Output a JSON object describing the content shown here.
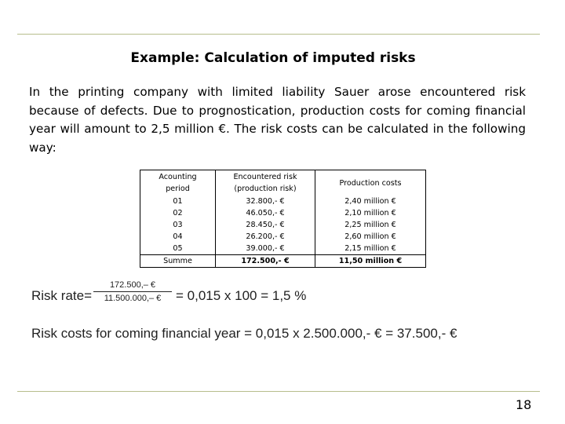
{
  "title": "Example: Calculation of imputed risks",
  "intro": "In the printing company with limited liability Sauer arose encountered risk because of defects. Due to prognostication, production costs for coming financial year will amount to 2,5  million €. The risk costs can be calculated in the following way:",
  "table": {
    "headers": {
      "col1": [
        "Acounting",
        "period"
      ],
      "col2": [
        "Encountered risk",
        "(production risk)"
      ],
      "col3": [
        "Production costs"
      ]
    },
    "rows": [
      {
        "period": "01",
        "risk": "32.800,- €",
        "costs": "2,40 million €"
      },
      {
        "period": "02",
        "risk": "46.050,- €",
        "costs": "2,10 million €"
      },
      {
        "period": "03",
        "risk": "28.450,- €",
        "costs": "2,25 million €"
      },
      {
        "period": "04",
        "risk": "26.200,- €",
        "costs": "2,60 million €"
      },
      {
        "period": "05",
        "risk": "39.000,- €",
        "costs": "2,15 million €"
      }
    ],
    "sum": {
      "label": "Summe",
      "risk": "172.500,- €",
      "costs": "11,50 million €"
    }
  },
  "formula": {
    "label": "Risk rate=",
    "numerator": "172.500,– €",
    "denominator": "11.500.000,– €",
    "result": "= 0,015 x 100 = 1,5 %"
  },
  "costs_line": "Risk costs for coming financial year = 0,015 x 2.500.000,- € = 37.500,- €",
  "page_number": "18"
}
